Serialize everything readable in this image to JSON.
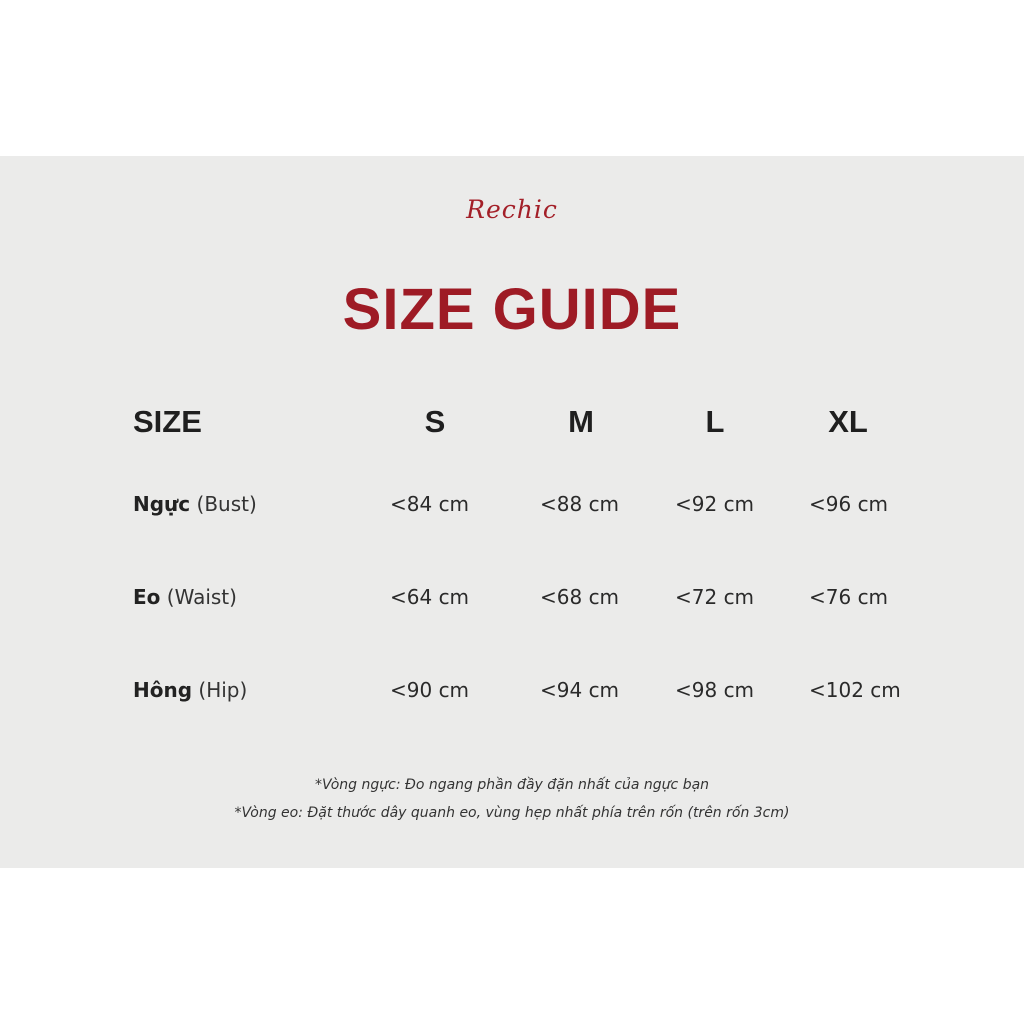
{
  "brand": "Rechic",
  "title": "SIZE GUIDE",
  "header": {
    "label": "SIZE",
    "sizes": [
      "S",
      "M",
      "L",
      "XL"
    ]
  },
  "rows": [
    {
      "name": "Ngực",
      "name_en": "(Bust)",
      "values": [
        "<84 cm",
        "<88 cm",
        "<92 cm",
        "<96 cm"
      ]
    },
    {
      "name": "Eo",
      "name_en": "(Waist)",
      "values": [
        "<64 cm",
        "<68 cm",
        "<72 cm",
        "<76 cm"
      ]
    },
    {
      "name": "Hông",
      "name_en": "(Hip)",
      "values": [
        "<90 cm",
        "<94 cm",
        "<98 cm",
        "<102 cm"
      ]
    }
  ],
  "notes": [
    "*Vòng ngực: Đo ngang phần đầy đặn nhất của ngực bạn",
    "*Vòng eo: Đặt thước dây quanh eo, vùng hẹp nhất phía trên rốn (trên rốn 3cm)"
  ],
  "colors": {
    "accent": "#9e1b25",
    "panel": "#ebebea"
  }
}
